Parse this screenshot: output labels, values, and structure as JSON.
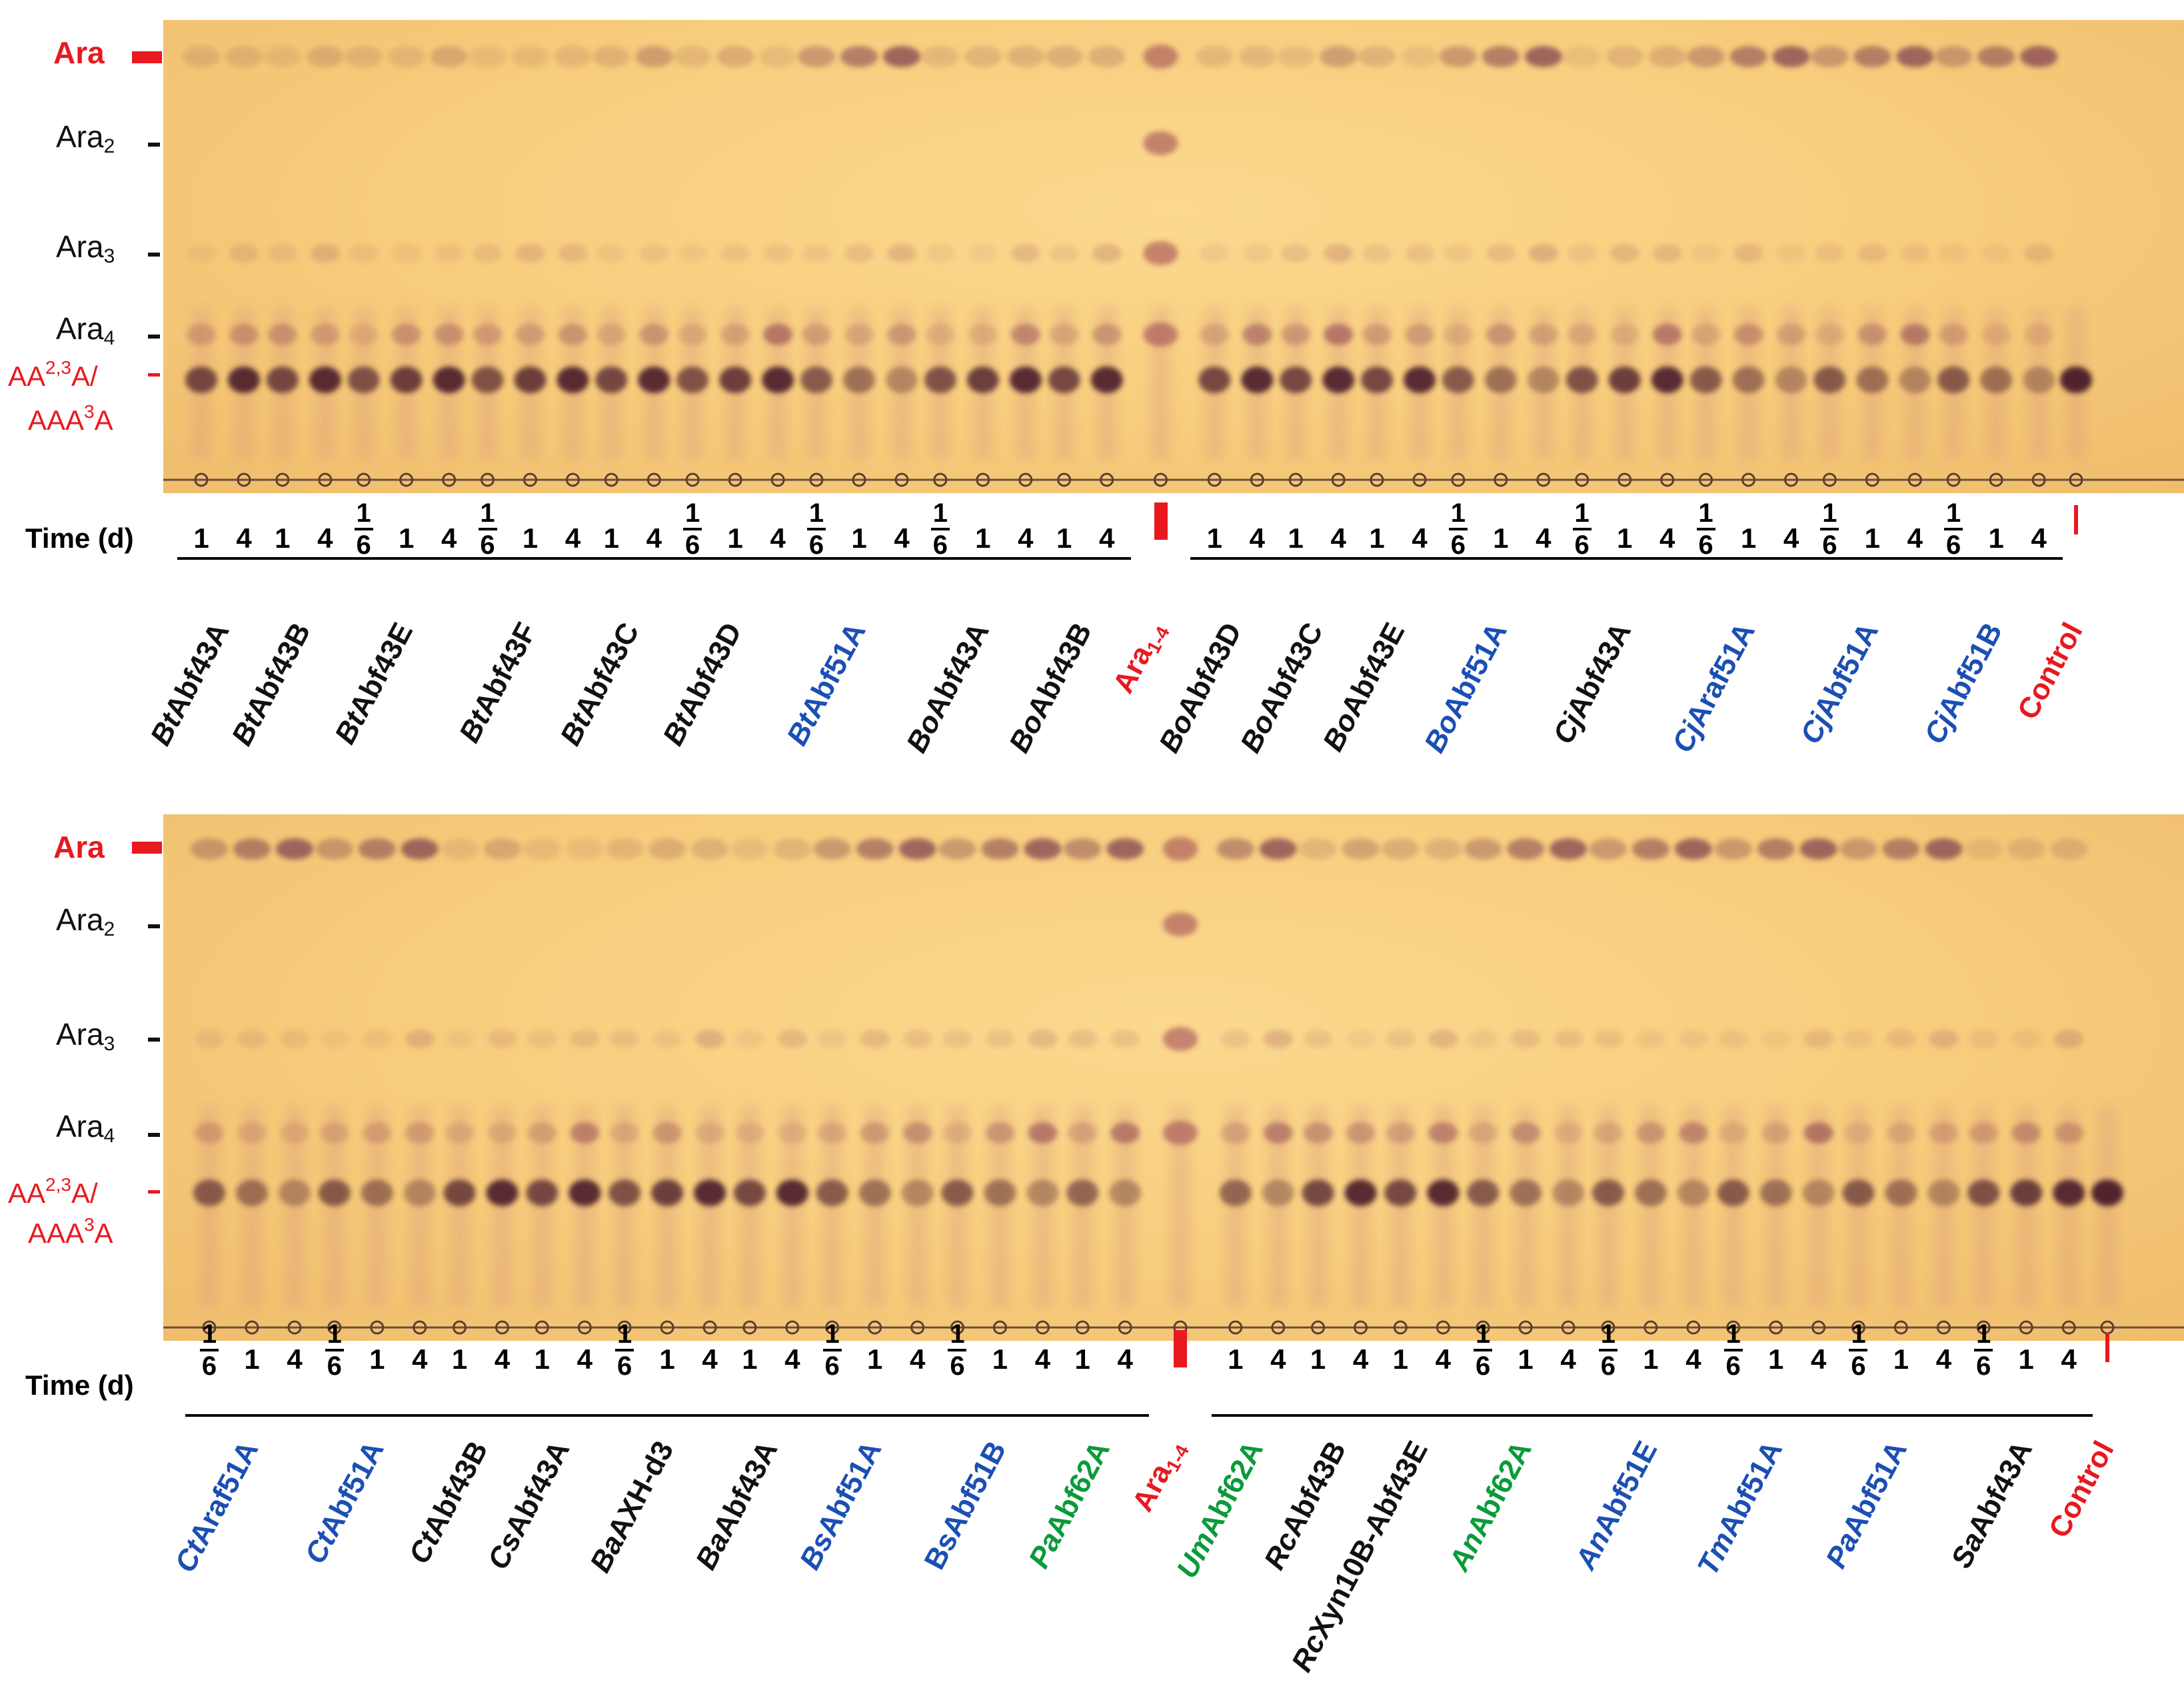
{
  "band_labels": {
    "ara": "Ara",
    "ara2_base": "Ara",
    "ara2_sub": "2",
    "ara3_base": "Ara",
    "ara3_sub": "3",
    "ara4_base": "Ara",
    "ara4_sub": "4",
    "aa_line1_a": "AA",
    "aa_line1_sup": "2,3",
    "aa_line1_b": "A/",
    "aa_line2_a": "AAA",
    "aa_line2_sup": "3",
    "aa_line2_b": "A"
  },
  "time_label": "Time (d)",
  "colors": {
    "black": "#111111",
    "blue": "#1b4fb3",
    "green": "#0a9a3a",
    "red": "#e8191f"
  },
  "panels": [
    {
      "groups": [
        {
          "time": [
            "1",
            "4"
          ],
          "prefix": "Bt",
          "rest": "Abf43A",
          "color": "black"
        },
        {
          "time": [
            "1",
            "4"
          ],
          "prefix": "Bt",
          "rest": "Abf43B",
          "color": "black"
        },
        {
          "time": [
            "1/6",
            "1",
            "4"
          ],
          "prefix": "Bt",
          "rest": "Abf43E",
          "color": "black"
        },
        {
          "time": [
            "1/6",
            "1",
            "4"
          ],
          "prefix": "Bt",
          "rest": "Abf43F",
          "color": "black"
        },
        {
          "time": [
            "1",
            "4"
          ],
          "prefix": "Bt",
          "rest": "Abf43C",
          "color": "black"
        },
        {
          "time": [
            "1/6",
            "1",
            "4"
          ],
          "prefix": "Bt",
          "rest": "Abf43D",
          "color": "black"
        },
        {
          "time": [
            "1/6",
            "1",
            "4"
          ],
          "prefix": "Bt",
          "rest": "Abf51A",
          "color": "blue"
        },
        {
          "time": [
            "1/6",
            "1",
            "4"
          ],
          "prefix": "Bo",
          "rest": "Abf43A",
          "color": "black"
        },
        {
          "time": [
            "1",
            "4"
          ],
          "prefix": "Bo",
          "rest": "Abf43B",
          "color": "black"
        },
        {
          "time": [],
          "standard": true,
          "prefix": "",
          "rest": "Ara",
          "sub": "1-4",
          "color": "red"
        },
        {
          "time": [
            "1",
            "4"
          ],
          "prefix": "Bo",
          "rest": "Abf43D",
          "color": "black"
        },
        {
          "time": [
            "1",
            "4"
          ],
          "prefix": "Bo",
          "rest": "Abf43C",
          "color": "black"
        },
        {
          "time": [
            "1",
            "4"
          ],
          "prefix": "Bo",
          "rest": "Abf43E",
          "color": "black"
        },
        {
          "time": [
            "1/6",
            "1",
            "4"
          ],
          "prefix": "Bo",
          "rest": "Abf51A",
          "color": "blue"
        },
        {
          "time": [
            "1/6",
            "1",
            "4"
          ],
          "prefix": "Cj",
          "rest": "Abf43A",
          "color": "black"
        },
        {
          "time": [
            "1/6",
            "1",
            "4"
          ],
          "prefix": "Cj",
          "rest": "Araf51A",
          "color": "blue"
        },
        {
          "time": [
            "1/6",
            "1",
            "4"
          ],
          "prefix": "Cj",
          "rest": "Abf51A",
          "color": "blue"
        },
        {
          "time": [
            "1/6",
            "1",
            "4"
          ],
          "prefix": "Cj",
          "rest": "Abf51B",
          "color": "blue"
        },
        {
          "time": [],
          "control": true,
          "prefix": "",
          "rest": "Control",
          "color": "red"
        }
      ]
    },
    {
      "groups": [
        {
          "time": [
            "1/6",
            "1",
            "4"
          ],
          "prefix": "Ct",
          "rest": "Araf51A",
          "color": "blue"
        },
        {
          "time": [
            "1/6",
            "1",
            "4"
          ],
          "prefix": "Ct",
          "rest": "Abf51A",
          "color": "blue"
        },
        {
          "time": [
            "1",
            "4"
          ],
          "prefix": "Ct",
          "rest": "Abf43B",
          "color": "black"
        },
        {
          "time": [
            "1",
            "4"
          ],
          "prefix": "Cs",
          "rest": "Abf43A",
          "color": "black"
        },
        {
          "time": [
            "1/6",
            "1",
            "4"
          ],
          "prefix": "Ba",
          "rest": "AXH-d3",
          "color": "black"
        },
        {
          "time": [
            "1",
            "4"
          ],
          "prefix": "Ba",
          "rest": "Abf43A",
          "color": "black"
        },
        {
          "time": [
            "1/6",
            "1",
            "4"
          ],
          "prefix": "Bs",
          "rest": "Abf51A",
          "color": "blue"
        },
        {
          "time": [
            "1/6",
            "1",
            "4"
          ],
          "prefix": "",
          "rest": "BsAbf51B",
          "color": "blue"
        },
        {
          "time": [
            "1",
            "4"
          ],
          "prefix": "Pa",
          "rest": "Abf62A",
          "color": "green"
        },
        {
          "time": [],
          "standard": true,
          "prefix": "",
          "rest": "Ara",
          "sub": "1-4",
          "color": "red"
        },
        {
          "time": [
            "1",
            "4"
          ],
          "prefix": "Um",
          "rest": "Abf62A",
          "color": "green"
        },
        {
          "time": [
            "1",
            "4"
          ],
          "prefix": "Rc",
          "rest": "Abf43B",
          "color": "black"
        },
        {
          "time": [
            "1",
            "4"
          ],
          "prefix": "Rc",
          "rest": "Xyn10B-Abf43E",
          "color": "black"
        },
        {
          "time": [
            "1/6",
            "1",
            "4"
          ],
          "prefix": "An",
          "rest": "Abf62A",
          "color": "green"
        },
        {
          "time": [
            "1/6",
            "1",
            "4"
          ],
          "prefix": "An",
          "rest": "Abf51E",
          "color": "blue"
        },
        {
          "time": [
            "1/6",
            "1",
            "4"
          ],
          "prefix": "Tm",
          "rest": "Abf51A",
          "color": "blue"
        },
        {
          "time": [
            "1/6",
            "1",
            "4"
          ],
          "prefix": "Pa",
          "rest": "Abf51A",
          "color": "blue"
        },
        {
          "time": [
            "1/6",
            "1",
            "4"
          ],
          "prefix": "Sa",
          "rest": "Abf43A",
          "color": "black"
        },
        {
          "time": [],
          "control": true,
          "prefix": "",
          "rest": "Control",
          "color": "red"
        }
      ]
    }
  ]
}
